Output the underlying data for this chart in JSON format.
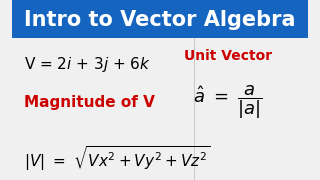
{
  "title": "Intro to Vector Algebra",
  "title_bg": "#1565C0",
  "title_color": "#FFFFFF",
  "body_bg": "#F0F0F0",
  "label_magnitude": "Magnitude of V",
  "label_magnitude_color": "#CC0000",
  "label_unit": "Unit Vector",
  "label_unit_color": "#CC0000",
  "figsize": [
    3.2,
    1.8
  ],
  "dpi": 100
}
